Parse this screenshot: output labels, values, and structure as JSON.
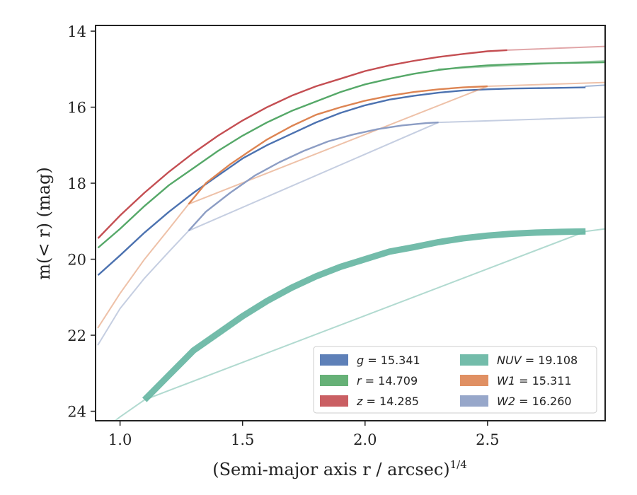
{
  "chart_data": {
    "type": "line",
    "xlabel": "(Semi-major axis r / arcsec)",
    "xlabel_superscript": "1/4",
    "ylabel": "m(< r) (mag)",
    "xlim": [
      0.9,
      2.98
    ],
    "ylim": [
      24.25,
      13.85
    ],
    "y_inverted": true,
    "grid": false,
    "legend_placement": "lower-right",
    "legend_columns": 2,
    "x_ticks": [
      {
        "value": 1.0,
        "label": "1.0"
      },
      {
        "value": 1.5,
        "label": "1.5"
      },
      {
        "value": 2.0,
        "label": "2.0"
      },
      {
        "value": 2.5,
        "label": "2.5"
      }
    ],
    "y_ticks": [
      {
        "value": 14,
        "label": "14"
      },
      {
        "value": 16,
        "label": "16"
      },
      {
        "value": 18,
        "label": "18"
      },
      {
        "value": 20,
        "label": "20"
      },
      {
        "value": 22,
        "label": "22"
      },
      {
        "value": 24,
        "label": "24"
      }
    ],
    "series": [
      {
        "name": "g = 15.341",
        "prefix": "g",
        "value": "15.341",
        "color": "#4c72b0",
        "x": [
          0.91,
          1.0,
          1.1,
          1.2,
          1.3,
          1.4,
          1.5,
          1.6,
          1.7,
          1.8,
          1.9,
          2.0,
          2.1,
          2.2,
          2.3,
          2.4,
          2.5,
          2.6,
          2.7,
          2.8,
          2.9
        ],
        "y": [
          20.42,
          19.9,
          19.3,
          18.75,
          18.25,
          17.8,
          17.35,
          17.0,
          16.7,
          16.4,
          16.15,
          15.95,
          15.8,
          15.7,
          15.62,
          15.56,
          15.53,
          15.51,
          15.5,
          15.49,
          15.48
        ],
        "ext_x": [
          2.9,
          2.98
        ],
        "ext_y": [
          15.45,
          15.42
        ]
      },
      {
        "name": "r = 14.709",
        "prefix": "r",
        "value": "14.709",
        "color": "#55a868",
        "x": [
          0.91,
          1.0,
          1.1,
          1.2,
          1.3,
          1.4,
          1.5,
          1.6,
          1.7,
          1.8,
          1.9,
          2.0,
          2.1,
          2.2,
          2.3,
          2.4,
          2.5,
          2.6,
          2.7,
          2.8,
          2.98
        ],
        "y": [
          19.7,
          19.2,
          18.6,
          18.05,
          17.6,
          17.15,
          16.75,
          16.4,
          16.1,
          15.85,
          15.6,
          15.4,
          15.25,
          15.12,
          15.02,
          14.95,
          14.9,
          14.87,
          14.85,
          14.84,
          14.82
        ],
        "ext_x": [
          2.3,
          2.98
        ],
        "ext_y": [
          15.0,
          14.78
        ]
      },
      {
        "name": "z = 14.285",
        "prefix": "z",
        "value": "14.285",
        "color": "#c44e52",
        "x": [
          0.91,
          1.0,
          1.1,
          1.2,
          1.3,
          1.4,
          1.5,
          1.6,
          1.7,
          1.8,
          1.9,
          2.0,
          2.1,
          2.2,
          2.3,
          2.4,
          2.5,
          2.58
        ],
        "y": [
          19.45,
          18.85,
          18.25,
          17.7,
          17.2,
          16.75,
          16.35,
          16.0,
          15.7,
          15.45,
          15.25,
          15.05,
          14.9,
          14.78,
          14.68,
          14.6,
          14.53,
          14.5
        ],
        "ext_x": [
          2.58,
          2.98
        ],
        "ext_y": [
          14.5,
          14.4
        ]
      },
      {
        "name": "NUV = 19.108",
        "prefix": "NUV",
        "value": "19.108",
        "color": "#64b5a1",
        "thick": true,
        "x": [
          1.1,
          1.2,
          1.3,
          1.4,
          1.5,
          1.6,
          1.7,
          1.8,
          1.9,
          2.0,
          2.1,
          2.2,
          2.3,
          2.4,
          2.5,
          2.6,
          2.7,
          2.8,
          2.9
        ],
        "y": [
          23.7,
          23.05,
          22.4,
          21.95,
          21.5,
          21.1,
          20.75,
          20.45,
          20.2,
          20.0,
          19.8,
          19.68,
          19.55,
          19.45,
          19.38,
          19.33,
          19.3,
          19.28,
          19.27
        ],
        "ext_x": [
          0.95,
          1.0,
          1.1,
          2.9,
          2.98
        ],
        "ext_y": [
          24.4,
          24.15,
          23.7,
          19.27,
          19.2
        ]
      },
      {
        "name": "W1 = 15.311",
        "prefix": "W1",
        "value": "15.311",
        "color": "#dd8452",
        "x": [
          1.28,
          1.35,
          1.45,
          1.53,
          1.6,
          1.7,
          1.8,
          1.9,
          2.0,
          2.1,
          2.2,
          2.3,
          2.4,
          2.5
        ],
        "y": [
          18.55,
          18.0,
          17.5,
          17.15,
          16.85,
          16.5,
          16.2,
          16.0,
          15.83,
          15.7,
          15.6,
          15.53,
          15.48,
          15.45
        ],
        "ext_x": [
          0.91,
          1.0,
          1.1,
          1.2,
          1.28,
          2.5,
          2.98
        ],
        "ext_y": [
          21.8,
          20.9,
          20.0,
          19.2,
          18.55,
          15.45,
          15.35
        ]
      },
      {
        "name": "W2 = 16.260",
        "prefix": "W2",
        "value": "16.260",
        "color": "#8c9dc4",
        "x": [
          1.28,
          1.35,
          1.45,
          1.55,
          1.65,
          1.75,
          1.85,
          1.95,
          2.05,
          2.15,
          2.25,
          2.3
        ],
        "y": [
          19.25,
          18.75,
          18.25,
          17.8,
          17.45,
          17.15,
          16.9,
          16.72,
          16.58,
          16.48,
          16.42,
          16.4
        ],
        "ext_x": [
          0.91,
          1.0,
          1.1,
          1.2,
          1.28,
          2.3,
          2.98
        ],
        "ext_y": [
          22.25,
          21.3,
          20.5,
          19.8,
          19.25,
          16.4,
          16.26
        ]
      }
    ]
  }
}
